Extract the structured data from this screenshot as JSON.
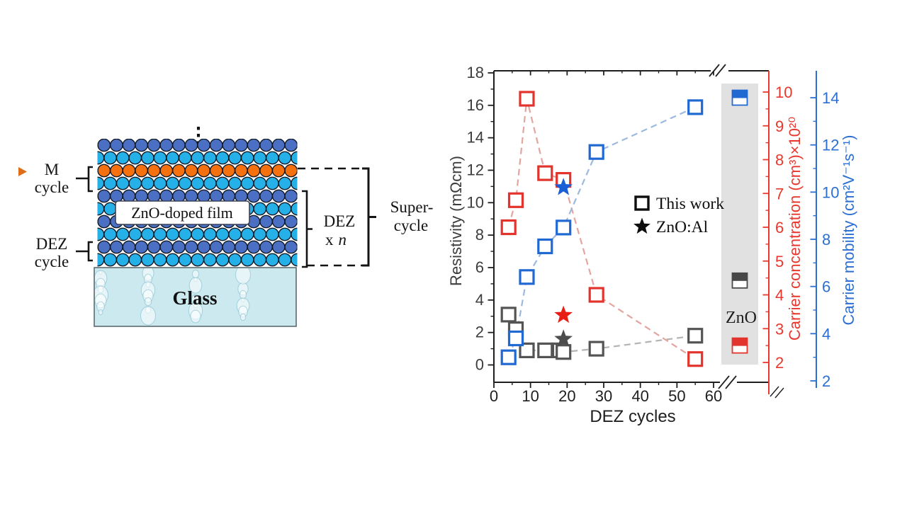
{
  "diagram": {
    "continuation_dots": "⋮",
    "labels": {
      "m_cycle": [
        "M",
        "cycle"
      ],
      "dez_cycle": [
        "DEZ",
        "cycle"
      ],
      "film": "ZnO-doped film",
      "glass": "Glass",
      "dez_xn": [
        "DEZ",
        "x",
        "n"
      ],
      "supercycle": [
        "Super-",
        "cycle"
      ]
    },
    "palette": {
      "dark_blue": "#4a6fc3",
      "light_blue": "#25b0e8",
      "orange": "#f57110",
      "glass_fill": "#cbe9ef",
      "outline": "#121a26"
    },
    "layer_colors_top_to_bottom": [
      "dark_blue",
      "light_blue",
      "orange",
      "light_blue",
      "dark_blue",
      "light_blue",
      "dark_blue",
      "light_blue",
      "dark_blue",
      "light_blue"
    ]
  },
  "chart_data": {
    "type": "scatter",
    "xlabel": "DEZ cycles",
    "x_ticks": [
      0,
      10,
      20,
      30,
      40,
      50,
      60
    ],
    "x_axis_break": true,
    "axes": {
      "resistivity": {
        "label": "Resistivity (mΩcm)",
        "ticks": [
          0,
          2,
          4,
          6,
          8,
          10,
          12,
          14,
          16,
          18
        ],
        "range": [
          0,
          18
        ],
        "color": "#3d3d3d",
        "side": "left"
      },
      "concentration": {
        "label": "Carrier concentration (cm³)×10²⁰",
        "ticks": [
          2,
          3,
          4,
          5,
          6,
          7,
          8,
          9,
          10
        ],
        "range": [
          2,
          10
        ],
        "color": "#e8382e",
        "side": "right-inner"
      },
      "mobility": {
        "label": "Carrier mobility (cm²V⁻¹s⁻¹)",
        "ticks": [
          2,
          4,
          6,
          8,
          10,
          12,
          14
        ],
        "range": [
          2,
          14
        ],
        "color": "#2b6fd3",
        "side": "right-outer"
      }
    },
    "series": [
      {
        "name": "resistivity-this-work",
        "axis": "resistivity",
        "marker": "open-square",
        "marker_color": "#545454",
        "line_color": "#b4b4b4",
        "x": [
          4,
          6,
          9,
          14,
          18,
          19,
          28,
          55
        ],
        "y": [
          3.1,
          2.2,
          0.9,
          0.9,
          0.9,
          0.8,
          1.0,
          1.8
        ]
      },
      {
        "name": "carrier-concentration-this-work",
        "axis": "concentration",
        "marker": "open-square",
        "marker_color": "#e2342c",
        "line_color": "#e2a59f",
        "x": [
          4,
          6,
          9,
          14,
          19,
          28,
          55
        ],
        "y": [
          6.0,
          6.8,
          9.8,
          7.6,
          7.4,
          4.0,
          2.1
        ]
      },
      {
        "name": "carrier-mobility-this-work",
        "axis": "mobility",
        "marker": "open-square",
        "marker_color": "#2068d2",
        "line_color": "#9db9de",
        "x": [
          4,
          6,
          9,
          14,
          19,
          28,
          55
        ],
        "y": [
          3.0,
          3.8,
          6.4,
          7.7,
          8.5,
          11.7,
          13.6
        ]
      }
    ],
    "zno_al_points": [
      {
        "axis": "resistivity",
        "x": 19,
        "y": 1.6,
        "color": "#4d4d4d"
      },
      {
        "axis": "concentration",
        "x": 19,
        "y": 3.4,
        "color": "#e81e14"
      },
      {
        "axis": "mobility",
        "x": 19,
        "y": 10.2,
        "color": "#1b5fd6"
      }
    ],
    "zno_reference": {
      "label": "ZnO",
      "markers": [
        {
          "axis": "mobility",
          "y": 14.0,
          "color": "#2068d2"
        },
        {
          "axis": "resistivity",
          "y": 5.2,
          "color": "#474747"
        },
        {
          "axis": "concentration",
          "y": 2.5,
          "color": "#e2342c"
        }
      ]
    },
    "legend": [
      {
        "marker": "open-square",
        "label": "This work"
      },
      {
        "marker": "star",
        "label": "ZnO:Al"
      }
    ]
  }
}
